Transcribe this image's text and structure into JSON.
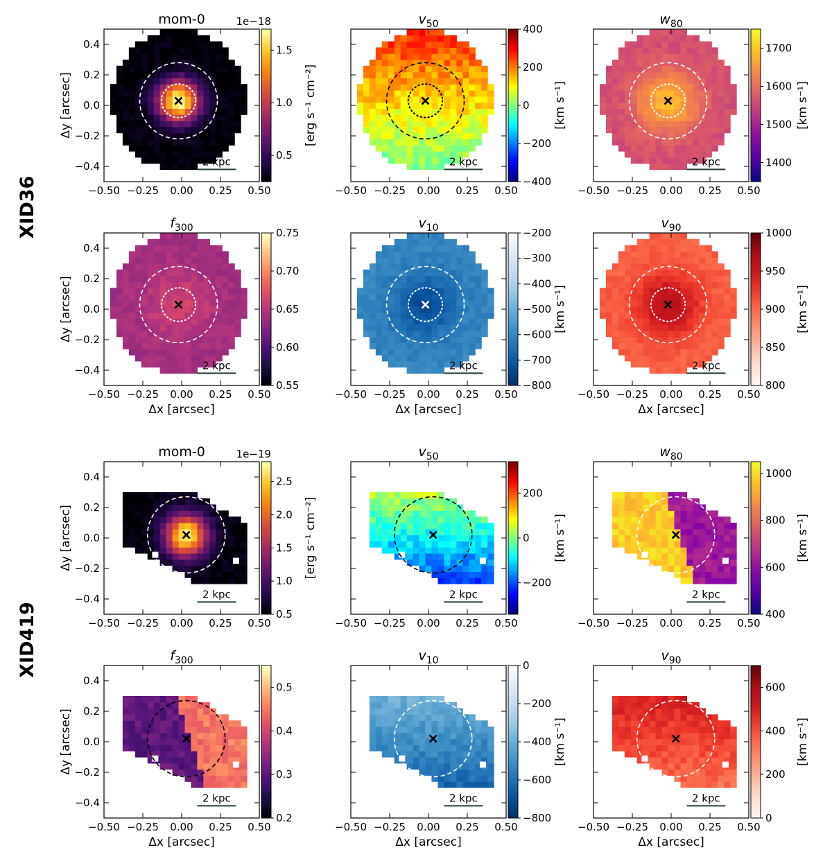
{
  "chart_data": {
    "type": "heatmap",
    "description_units": "arcsec",
    "axes": {
      "xlabel": "Δx [arcsec]",
      "ylabel": "Δy [arcsec]",
      "xlim": [
        -0.5,
        0.5
      ],
      "ylim": [
        -0.5,
        0.5
      ],
      "xticks": [
        "−0.50",
        "−0.25",
        "0.00",
        "0.25",
        "0.50"
      ],
      "yticks": [
        "−0.4",
        "−0.2",
        "0.0",
        "0.2",
        "0.4"
      ],
      "xtick_values": [
        -0.5,
        -0.25,
        0.0,
        0.25,
        0.5
      ],
      "ytick_values": [
        -0.4,
        -0.2,
        0.0,
        0.2,
        0.4
      ]
    },
    "scale_bar_label": "2 kpc",
    "groups": [
      {
        "name": "XID36",
        "center": [
          -0.02,
          0.03
        ],
        "r_dashed": 0.25,
        "r_dotted": 0.11,
        "panels": [
          {
            "id": "xid36-mom0",
            "title": "mom-0",
            "cmap": "inferno",
            "vmin": 0.25,
            "vmax": 1.7,
            "ticks": [
              0.5,
              1.0,
              1.5
            ],
            "ticklabels": [
              "0.5",
              "1.0",
              "1.5"
            ],
            "cbar_label": "[erg s⁻¹ cm⁻²]",
            "exponent": "1e−18",
            "marker_color": "#000000",
            "circle_color": "#ffffff",
            "pattern": "radial",
            "peak": 1.7,
            "edge": 0.35
          },
          {
            "id": "xid36-v50",
            "title": "v50",
            "cmap": "jet",
            "vmin": -400,
            "vmax": 400,
            "ticks": [
              -400,
              -200,
              0,
              200,
              400
            ],
            "ticklabels": [
              "−400",
              "−200",
              "0",
              "200",
              "400"
            ],
            "cbar_label": "[km s⁻¹]",
            "exponent": "",
            "marker_color": "#000000",
            "circle_color": "#000000",
            "pattern": "gradient_y",
            "top": 260,
            "bottom": -20
          },
          {
            "id": "xid36-w80",
            "title": "w80",
            "cmap": "plasma",
            "vmin": 1350,
            "vmax": 1750,
            "ticks": [
              1400,
              1500,
              1600,
              1700
            ],
            "ticklabels": [
              "1400",
              "1500",
              "1600",
              "1700"
            ],
            "cbar_label": "[km s⁻¹]",
            "exponent": "",
            "marker_color": "#000000",
            "circle_color": "#ffffff",
            "pattern": "radial",
            "peak": 1690,
            "edge": 1560
          },
          {
            "id": "xid36-f300",
            "title": "f300",
            "cmap": "magma",
            "vmin": 0.55,
            "vmax": 0.75,
            "ticks": [
              0.55,
              0.6,
              0.65,
              0.7,
              0.75
            ],
            "ticklabels": [
              "0.55",
              "0.60",
              "0.65",
              "0.70",
              "0.75"
            ],
            "cbar_label": "",
            "exponent": "",
            "marker_color": "#000000",
            "circle_color": "#ffffff",
            "pattern": "radial",
            "peak": 0.665,
            "edge": 0.64
          },
          {
            "id": "xid36-v10",
            "title": "v10",
            "cmap": "blues_r",
            "vmin": -800,
            "vmax": -200,
            "ticks": [
              -800,
              -700,
              -600,
              -500,
              -400,
              -300,
              -200
            ],
            "ticklabels": [
              "−800",
              "−700",
              "−600",
              "−500",
              "−400",
              "−300",
              "−200"
            ],
            "cbar_label": "[km s⁻¹]",
            "exponent": "",
            "marker_color": "#ffffff",
            "circle_color": "#ffffff",
            "pattern": "radial",
            "peak": -740,
            "edge": -600
          },
          {
            "id": "xid36-v90",
            "title": "v90",
            "cmap": "reds",
            "vmin": 800,
            "vmax": 1000,
            "ticks": [
              800,
              850,
              900,
              950,
              1000
            ],
            "ticklabels": [
              "800",
              "850",
              "900",
              "950",
              "1000"
            ],
            "cbar_label": "[km s⁻¹]",
            "exponent": "",
            "marker_color": "#000000",
            "circle_color": "#ffffff",
            "pattern": "radial",
            "peak": 965,
            "edge": 905
          }
        ]
      },
      {
        "name": "XID419",
        "center": [
          0.03,
          0.02
        ],
        "r_dashed": 0.25,
        "r_dotted": 0,
        "panels": [
          {
            "id": "xid419-mom0",
            "title": "mom-0",
            "cmap": "inferno",
            "vmin": 0.5,
            "vmax": 2.8,
            "ticks": [
              0.5,
              1.0,
              1.5,
              2.0,
              2.5
            ],
            "ticklabels": [
              "0.5",
              "1.0",
              "1.5",
              "2.0",
              "2.5"
            ],
            "cbar_label": "[erg s⁻¹ cm⁻²]",
            "exponent": "1e−19",
            "marker_color": "#000000",
            "circle_color": "#ffffff",
            "pattern": "radial",
            "peak": 2.7,
            "edge": 0.75
          },
          {
            "id": "xid419-v50",
            "title": "v50",
            "cmap": "jet",
            "vmin": -340,
            "vmax": 340,
            "ticks": [
              -200,
              0,
              200
            ],
            "ticklabels": [
              "−200",
              "0",
              "200"
            ],
            "cbar_label": "[km s⁻¹]",
            "exponent": "",
            "marker_color": "#000000",
            "circle_color": "#000000",
            "pattern": "gradient_y",
            "top": 100,
            "bottom": -280
          },
          {
            "id": "xid419-w80",
            "title": "w80",
            "cmap": "plasma",
            "vmin": 400,
            "vmax": 1050,
            "ticks": [
              400,
              600,
              800,
              1000
            ],
            "ticklabels": [
              "400",
              "600",
              "800",
              "1000"
            ],
            "cbar_label": "[km s⁻¹]",
            "exponent": "",
            "marker_color": "#000000",
            "circle_color": "#ffffff",
            "pattern": "split_x",
            "left": 980,
            "right": 620
          },
          {
            "id": "xid419-f300",
            "title": "f300",
            "cmap": "magma",
            "vmin": 0.2,
            "vmax": 0.55,
            "ticks": [
              0.2,
              0.3,
              0.4,
              0.5
            ],
            "ticklabels": [
              "0.2",
              "0.3",
              "0.4",
              "0.5"
            ],
            "cbar_label": "",
            "exponent": "",
            "marker_color": "#000000",
            "circle_color": "#000000",
            "pattern": "split_x",
            "left": 0.3,
            "right": 0.45
          },
          {
            "id": "xid419-v10",
            "title": "v10",
            "cmap": "blues_r",
            "vmin": -800,
            "vmax": 0,
            "ticks": [
              -800,
              -600,
              -400,
              -200,
              0
            ],
            "ticklabels": [
              "−800",
              "−600",
              "−400",
              "−200",
              "0"
            ],
            "cbar_label": "[km s⁻¹]",
            "exponent": "",
            "marker_color": "#000000",
            "circle_color": "#ffffff",
            "pattern": "gradient_y",
            "top": -330,
            "bottom": -700
          },
          {
            "id": "xid419-v90",
            "title": "v90",
            "cmap": "reds",
            "vmin": 0,
            "vmax": 700,
            "ticks": [
              0,
              200,
              400,
              600
            ],
            "ticklabels": [
              "0",
              "200",
              "400",
              "600"
            ],
            "cbar_label": "[km s⁻¹]",
            "exponent": "",
            "marker_color": "#000000",
            "circle_color": "#ffffff",
            "pattern": "gradient_y",
            "top": 540,
            "bottom": 300
          }
        ]
      }
    ]
  }
}
